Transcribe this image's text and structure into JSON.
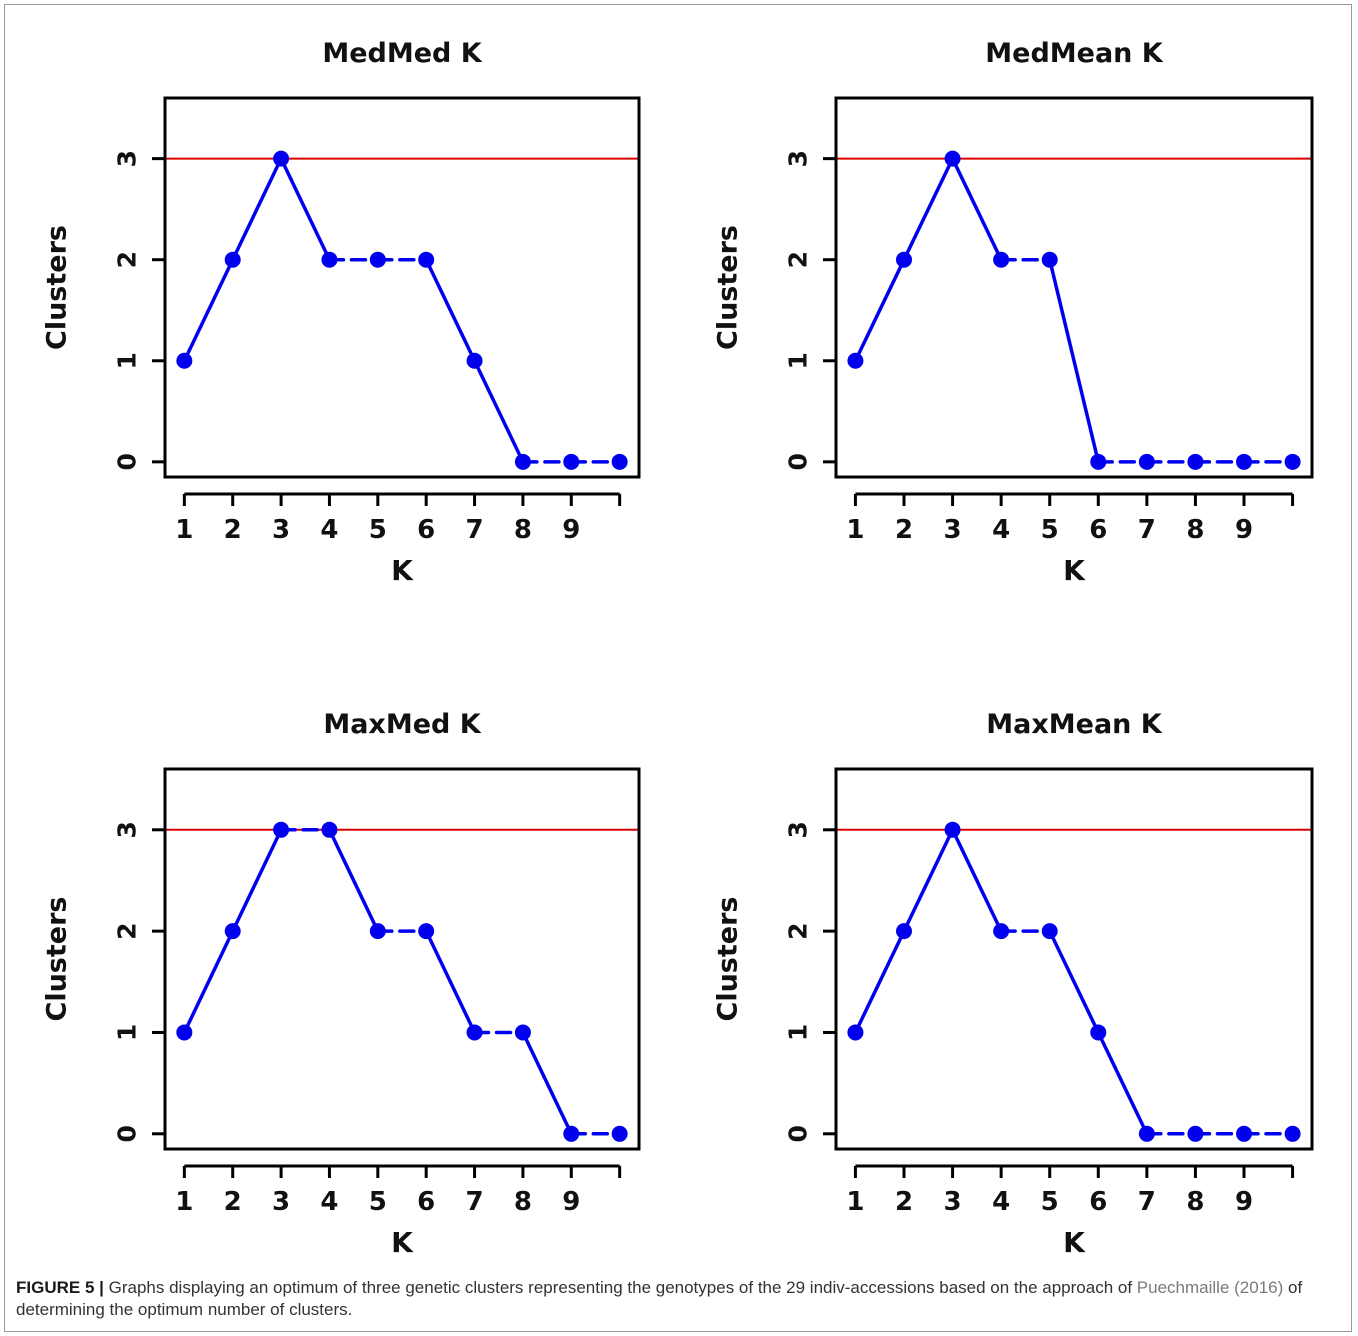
{
  "figure": {
    "caption_label": "FIGURE 5 |",
    "caption_text_1": " Graphs displaying an optimum of three genetic clusters representing the genotypes of the 29 indiv-accessions based on the approach of ",
    "caption_ref": "Puechmaille (2016)",
    "caption_text_2": " of determining the optimum number of clusters."
  },
  "chart_data": [
    {
      "type": "line",
      "title": "MedMed K",
      "xlabel": "K",
      "ylabel": "Clusters",
      "x": [
        1,
        2,
        3,
        4,
        5,
        6,
        7,
        8,
        9,
        10
      ],
      "x_tick_labels": [
        "1",
        "2",
        "3",
        "4",
        "5",
        "6",
        "7",
        "8",
        "9"
      ],
      "y": [
        1,
        2,
        3,
        2,
        2,
        2,
        1,
        0,
        0,
        0
      ],
      "y_ticks": [
        0,
        1,
        2,
        3
      ],
      "reference_line": 3,
      "xlim": [
        0.6,
        10.4
      ],
      "ylim": [
        -0.15,
        3.6
      ],
      "grid": false,
      "line_color": "#0000ee",
      "reference_color": "#dd0000"
    },
    {
      "type": "line",
      "title": "MedMean K",
      "xlabel": "K",
      "ylabel": "Clusters",
      "x": [
        1,
        2,
        3,
        4,
        5,
        6,
        7,
        8,
        9,
        10
      ],
      "x_tick_labels": [
        "1",
        "2",
        "3",
        "4",
        "5",
        "6",
        "7",
        "8",
        "9"
      ],
      "y": [
        1,
        2,
        3,
        2,
        2,
        0,
        0,
        0,
        0,
        0
      ],
      "y_ticks": [
        0,
        1,
        2,
        3
      ],
      "reference_line": 3,
      "xlim": [
        0.6,
        10.4
      ],
      "ylim": [
        -0.15,
        3.6
      ],
      "grid": false,
      "line_color": "#0000ee",
      "reference_color": "#dd0000"
    },
    {
      "type": "line",
      "title": "MaxMed K",
      "xlabel": "K",
      "ylabel": "Clusters",
      "x": [
        1,
        2,
        3,
        4,
        5,
        6,
        7,
        8,
        9,
        10
      ],
      "x_tick_labels": [
        "1",
        "2",
        "3",
        "4",
        "5",
        "6",
        "7",
        "8",
        "9"
      ],
      "y": [
        1,
        2,
        3,
        3,
        2,
        2,
        1,
        1,
        0,
        0
      ],
      "y_ticks": [
        0,
        1,
        2,
        3
      ],
      "reference_line": 3,
      "xlim": [
        0.6,
        10.4
      ],
      "ylim": [
        -0.15,
        3.6
      ],
      "grid": false,
      "line_color": "#0000ee",
      "reference_color": "#dd0000"
    },
    {
      "type": "line",
      "title": "MaxMean K",
      "xlabel": "K",
      "ylabel": "Clusters",
      "x": [
        1,
        2,
        3,
        4,
        5,
        6,
        7,
        8,
        9,
        10
      ],
      "x_tick_labels": [
        "1",
        "2",
        "3",
        "4",
        "5",
        "6",
        "7",
        "8",
        "9"
      ],
      "y": [
        1,
        2,
        3,
        2,
        2,
        1,
        0,
        0,
        0,
        0
      ],
      "y_ticks": [
        0,
        1,
        2,
        3
      ],
      "reference_line": 3,
      "xlim": [
        0.6,
        10.4
      ],
      "ylim": [
        -0.15,
        3.6
      ],
      "grid": false,
      "line_color": "#0000ee",
      "reference_color": "#dd0000"
    }
  ]
}
